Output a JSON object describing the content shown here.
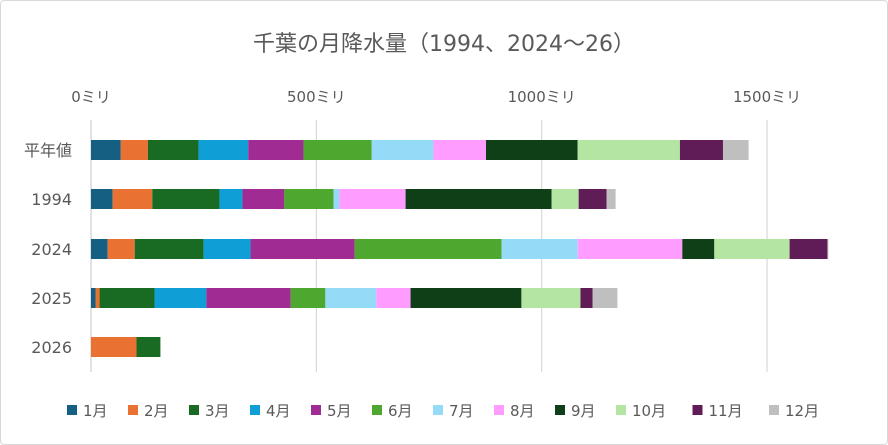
{
  "chart_data": {
    "type": "bar",
    "orientation": "horizontal",
    "stacked": true,
    "title": "千葉の月降水量（1994、2024～26）",
    "categories": [
      "平年値",
      "1994",
      "2024",
      "2025",
      "2026"
    ],
    "xlim": [
      0,
      1650
    ],
    "x_ticks": [
      0,
      500,
      1000,
      1500
    ],
    "x_tick_labels": [
      "0ミリ",
      "500ミリ",
      "1000ミリ",
      "1500ミリ"
    ],
    "x_axis_position": "top",
    "grid": true,
    "legend_position": "bottom",
    "series": [
      {
        "name": "1月",
        "color": "#156082",
        "values": [
          66.1,
          48,
          37,
          10,
          0
        ]
      },
      {
        "name": "2月",
        "color": "#e97132",
        "values": [
          60.2,
          88,
          60,
          9,
          101
        ]
      },
      {
        "name": "3月",
        "color": "#196b24",
        "values": [
          112.1,
          149,
          153,
          122,
          53
        ]
      },
      {
        "name": "4月",
        "color": "#0f9ed5",
        "values": [
          110.4,
          51,
          104,
          115,
          0
        ]
      },
      {
        "name": "5月",
        "color": "#a02b93",
        "values": [
          122.6,
          93,
          231,
          187,
          0
        ]
      },
      {
        "name": "6月",
        "color": "#4ea72e",
        "values": [
          151.5,
          109,
          326,
          77,
          0
        ]
      },
      {
        "name": "7月",
        "color": "#95dbf7",
        "values": [
          137.0,
          13,
          169,
          113,
          0
        ]
      },
      {
        "name": "8月",
        "color": "#ff9cff",
        "values": [
          116.5,
          147,
          232,
          76,
          0
        ]
      },
      {
        "name": "9月",
        "color": "#0f3f17",
        "values": [
          203.4,
          324,
          71,
          246,
          0
        ]
      },
      {
        "name": "10月",
        "color": "#b4e5a2",
        "values": [
          226.9,
          60,
          167,
          131,
          0
        ]
      },
      {
        "name": "11月",
        "color": "#5f1c56",
        "values": [
          95.5,
          62,
          84,
          27,
          0
        ]
      },
      {
        "name": "12月",
        "color": "#bfbfbf",
        "values": [
          56.9,
          20,
          2,
          55,
          0
        ]
      }
    ]
  }
}
